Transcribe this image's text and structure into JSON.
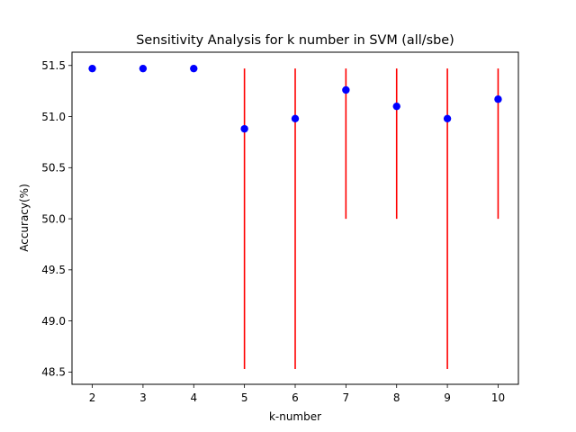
{
  "chart_data": {
    "type": "scatter",
    "title": "Sensitivity Analysis for k number in SVM (all/sbe)",
    "xlabel": "k-number",
    "ylabel": "Accuracy(%)",
    "xlim": [
      1.6,
      10.4
    ],
    "ylim": [
      48.38,
      51.63
    ],
    "xticks": [
      2,
      3,
      4,
      5,
      6,
      7,
      8,
      9,
      10
    ],
    "yticks": [
      48.5,
      49.0,
      49.5,
      50.0,
      50.5,
      51.0,
      51.5
    ],
    "ytick_labels": [
      "48.5",
      "49.0",
      "49.5",
      "50.0",
      "50.5",
      "51.0",
      "51.5"
    ],
    "grid": false,
    "series": [
      {
        "marker_color": "#0000ff",
        "errorbar_color": "#ff0000",
        "x": [
          2,
          3,
          4,
          5,
          6,
          7,
          8,
          9,
          10
        ],
        "y": [
          51.47,
          51.47,
          51.47,
          50.88,
          50.98,
          51.26,
          51.1,
          50.98,
          51.17
        ],
        "err_low": [
          51.47,
          51.47,
          51.47,
          48.53,
          48.53,
          50.0,
          50.0,
          48.53,
          50.0
        ],
        "err_high": [
          51.47,
          51.47,
          51.47,
          51.47,
          51.47,
          51.47,
          51.47,
          51.47,
          51.47
        ]
      }
    ]
  }
}
